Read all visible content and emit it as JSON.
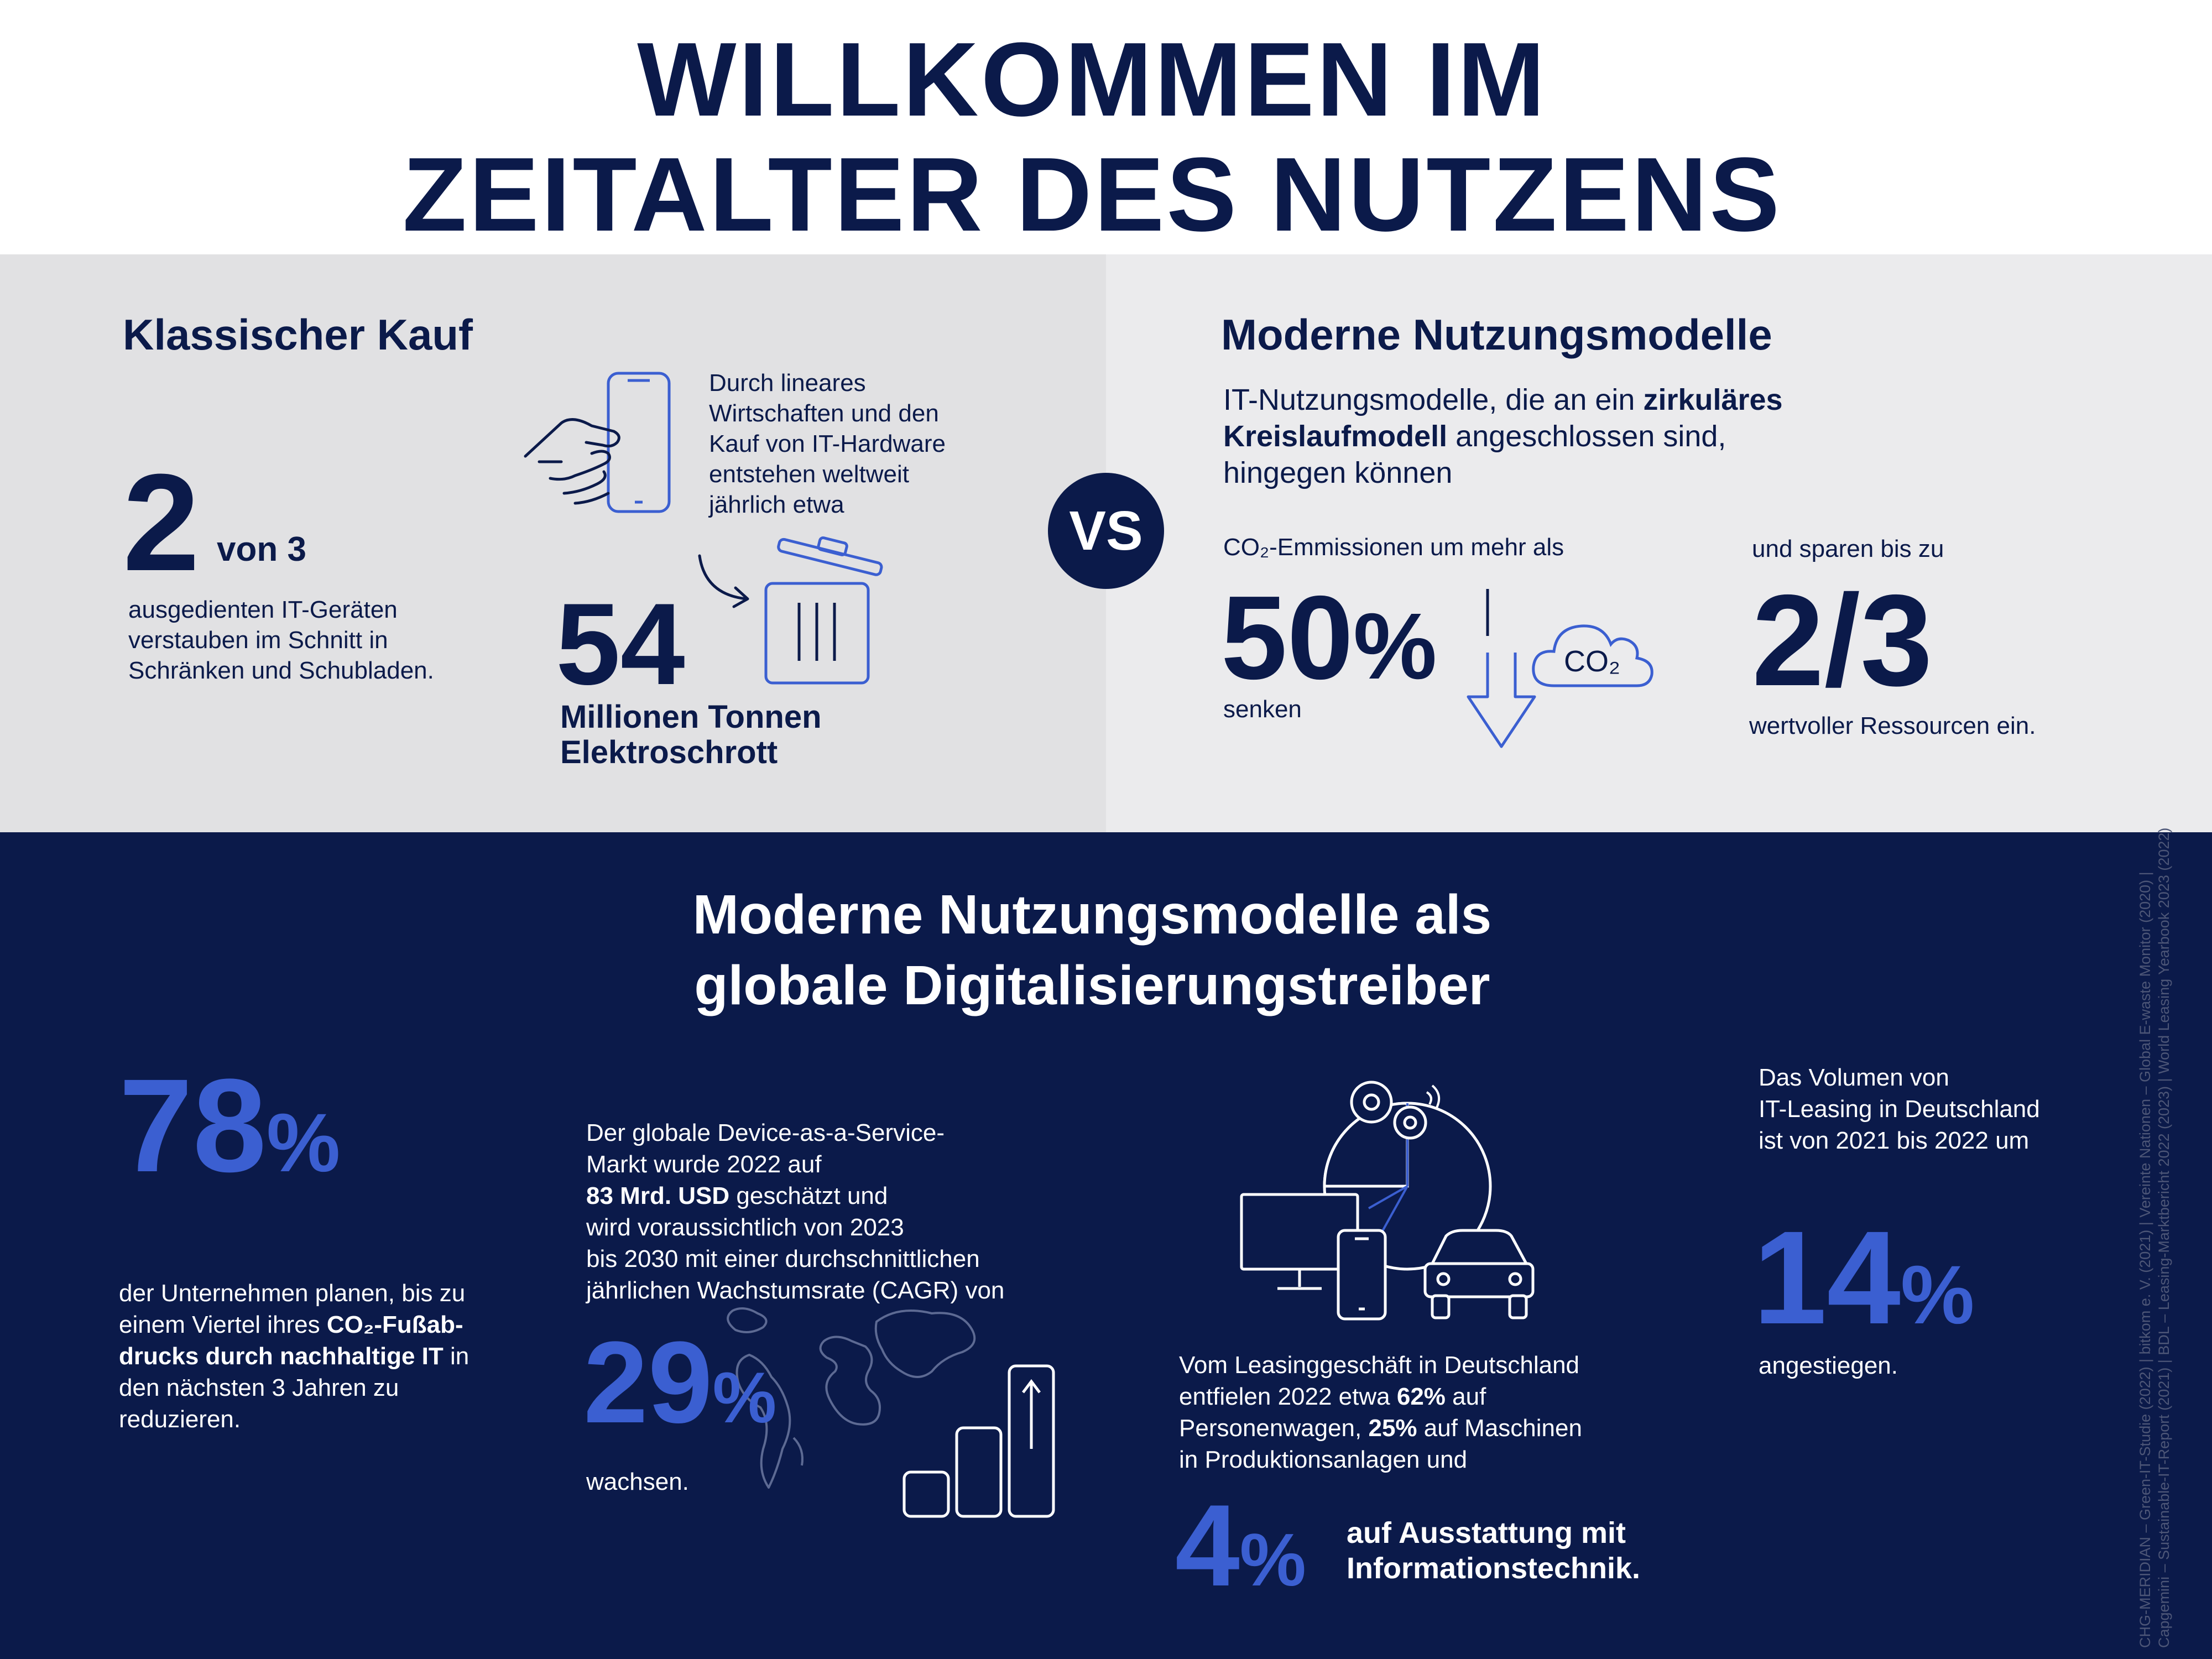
{
  "title": {
    "line1": "WILLKOMMEN IM",
    "line2": "ZEITALTER DES NUTZENS"
  },
  "left": {
    "heading": "Klassischer Kauf",
    "stat1_number": "2",
    "stat1_suffix": "von 3",
    "stat1_text_l1": "ausgedienten IT-Geräten",
    "stat1_text_l2": "verstauben im Schnitt in",
    "stat1_text_l3": "Schränken und Schubladen.",
    "intro_l1": "Durch lineares",
    "intro_l2": "Wirtschaften und den",
    "intro_l3": "Kauf von IT-Hardware",
    "intro_l4": "entstehen weltweit",
    "intro_l5": "jährlich etwa",
    "stat2_number": "54",
    "stat2_l1": "Millionen Tonnen",
    "stat2_l2": "Elektroschrott",
    "icons": [
      "hand-holding-phone-icon",
      "arrow-curve-icon",
      "trash-bin-icon"
    ]
  },
  "vs_label": "VS",
  "right": {
    "heading": "Moderne Nutzungsmodelle",
    "intro_l1_a": "IT-Nutzungsmodelle, die an ein ",
    "intro_l1_b": "zirkuläres",
    "intro_l2_a": "Kreislaufmodell",
    "intro_l2_b": " angeschlossen sind,",
    "intro_l3": "hingegen können",
    "co2_label": "CO₂-Emmissionen um mehr als",
    "co2_number": "50",
    "co2_pct": "%",
    "co2_verb": "senken",
    "cloud_text": "CO₂",
    "res_label": "und sparen bis zu",
    "res_number": "2/3",
    "res_text": "wertvoller Ressourcen ein.",
    "icons": [
      "down-arrow-icon",
      "co2-cloud-icon"
    ]
  },
  "bottom": {
    "heading_l1": "Moderne Nutzungsmodelle als",
    "heading_l2": "globale Digitalisierungstreiber",
    "s1": {
      "number": "78",
      "pct": "%",
      "l1": "der Unternehmen planen, bis zu",
      "l2_a": "einem Viertel ihres ",
      "l2_b": "CO₂-Fußab-",
      "l3": "drucks durch nachhaltige IT",
      "l3_b": " in",
      "l4": "den nächsten 3 Jahren zu",
      "l5": "reduzieren."
    },
    "s2": {
      "l1": "Der globale Device-as-a-Service-",
      "l2": "Markt wurde 2022 auf",
      "l3_a": "83 Mrd. USD",
      "l3_b": " geschätzt und",
      "l4": "wird voraussichtlich von 2023",
      "l5": "bis 2030 mit einer durchschnittlichen",
      "l6": "jährlichen Wachstumsrate (CAGR) von",
      "number": "29",
      "pct": "%",
      "verb": "wachsen."
    },
    "s3": {
      "l1": "Vom Leasinggeschäft in Deutschland",
      "l2_a": "entfielen 2022 etwa ",
      "l2_b": "62%",
      "l2_c": " auf",
      "l3_a": "Personenwagen, ",
      "l3_b": "25%",
      "l3_c": " auf Maschinen",
      "l4": "in Produktionsanlagen und",
      "number": "4",
      "pct": "%",
      "tail_l1": "auf Ausstattung mit",
      "tail_l2": "Informationstechnik."
    },
    "s4": {
      "l1": "Das Volumen von",
      "l2": "IT-Leasing in Deutschland",
      "l3": "ist von 2021 bis 2022 um",
      "number": "14",
      "pct": "%",
      "verb": "angestiegen."
    },
    "sources": {
      "l1": "CHG-MERIDIAN – Green-IT-Studie (2022) | bitkom e. V. (2021) | Vereinte Nationen – Global E-waste Monitor (2020) |",
      "l2": "Capgemini – Sustainable-IT-Report (2021) | BDL – Leasing-Marktbericht 2022 (2023) | World Leasing Yearbook 2023 (2022)"
    },
    "icons": [
      "world-map-icon",
      "bar-chart-icon",
      "gears-icon",
      "pie-chart-icon",
      "monitor-icon",
      "phone-icon",
      "car-icon"
    ]
  },
  "colors": {
    "navy": "#0b1a4a",
    "accent_blue": "#3b5fd1",
    "panel_left": "#e1e1e3",
    "panel_right": "#ebebed"
  }
}
